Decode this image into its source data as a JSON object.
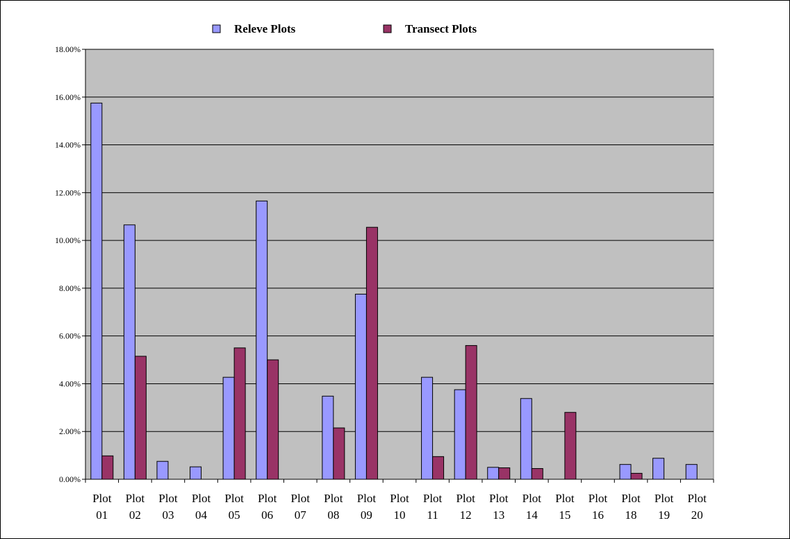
{
  "chart_data": {
    "type": "bar",
    "title": "",
    "xlabel": "",
    "ylabel": "",
    "legend_position": "top",
    "grid": true,
    "ylim": [
      0,
      18
    ],
    "y_ticks": [
      0,
      2,
      4,
      6,
      8,
      10,
      12,
      14,
      16,
      18
    ],
    "y_tick_labels": [
      "0.00%",
      "2.00%",
      "4.00%",
      "6.00%",
      "8.00%",
      "10.00%",
      "12.00%",
      "14.00%",
      "16.00%",
      "18.00%"
    ],
    "categories": [
      [
        "Plot",
        "01"
      ],
      [
        "Plot",
        "02"
      ],
      [
        "Plot",
        "03"
      ],
      [
        "Plot",
        "04"
      ],
      [
        "Plot",
        "05"
      ],
      [
        "Plot",
        "06"
      ],
      [
        "Plot",
        "07"
      ],
      [
        "Plot",
        "08"
      ],
      [
        "Plot",
        "09"
      ],
      [
        "Plot",
        "10"
      ],
      [
        "Plot",
        "11"
      ],
      [
        "Plot",
        "12"
      ],
      [
        "Plot",
        "13"
      ],
      [
        "Plot",
        "14"
      ],
      [
        "Plot",
        "15"
      ],
      [
        "Plot",
        "16"
      ],
      [
        "Plot",
        "18"
      ],
      [
        "Plot",
        "19"
      ],
      [
        "Plot",
        "20"
      ]
    ],
    "series": [
      {
        "name": "Releve Plots",
        "color": "#9999ff",
        "values": [
          15.75,
          10.65,
          0.75,
          0.52,
          4.27,
          11.65,
          0,
          3.48,
          7.75,
          0,
          4.27,
          3.75,
          0.5,
          3.38,
          0,
          0,
          0.62,
          0.88,
          0.62
        ]
      },
      {
        "name": "Transect Plots",
        "color": "#993366",
        "values": [
          0.98,
          5.15,
          0,
          0,
          5.5,
          5.0,
          0,
          2.15,
          10.55,
          0,
          0.95,
          5.6,
          0.48,
          0.45,
          2.8,
          0,
          0.25,
          0,
          0
        ]
      }
    ],
    "plot_background": "#c0c0c0",
    "gridline_color": "#000000"
  }
}
